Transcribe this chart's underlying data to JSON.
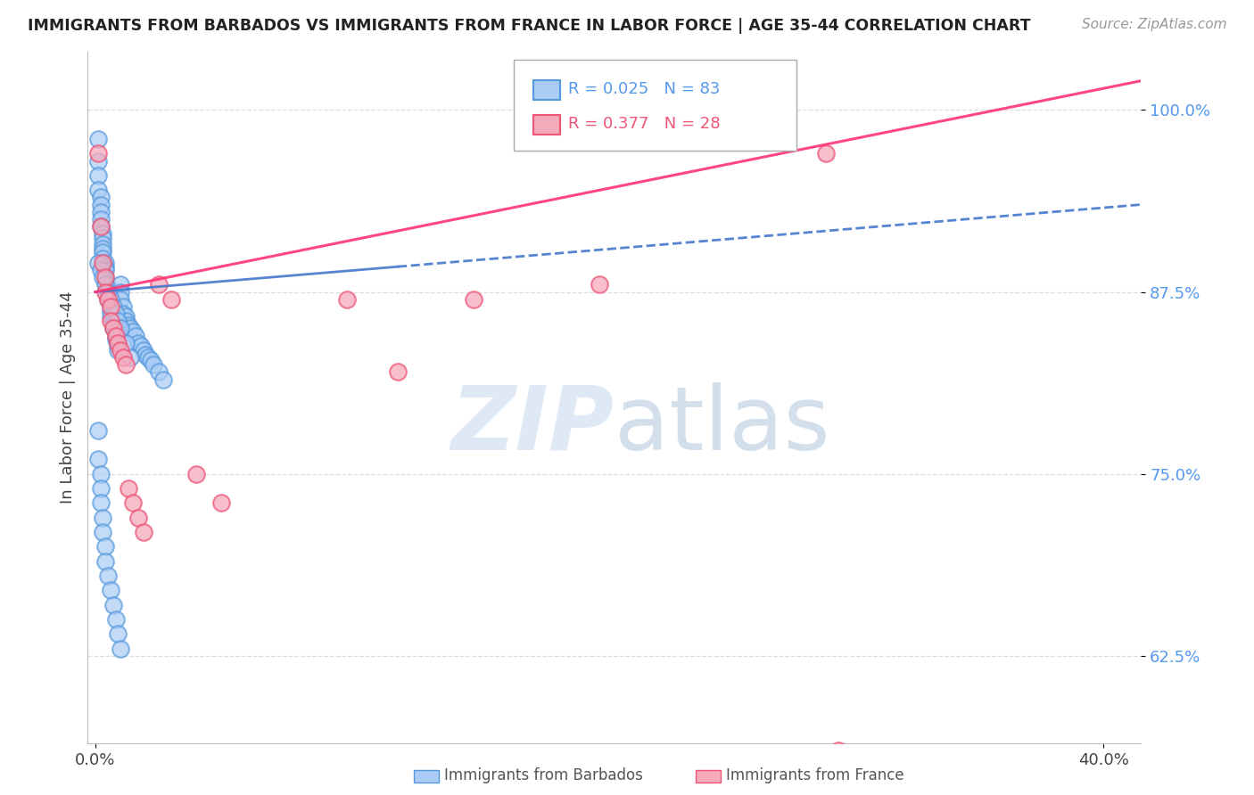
{
  "title": "IMMIGRANTS FROM BARBADOS VS IMMIGRANTS FROM FRANCE IN LABOR FORCE | AGE 35-44 CORRELATION CHART",
  "source": "Source: ZipAtlas.com",
  "ylabel": "In Labor Force | Age 35-44",
  "xlim": [
    -0.003,
    0.415
  ],
  "ylim": [
    0.565,
    1.04
  ],
  "xtick_positions": [
    0.0,
    0.4
  ],
  "xticklabels": [
    "0.0%",
    "40.0%"
  ],
  "ytick_positions": [
    0.625,
    0.75,
    0.875,
    1.0
  ],
  "yticklabels": [
    "62.5%",
    "75.0%",
    "87.5%",
    "100.0%"
  ],
  "barbados_color": "#aaccf5",
  "barbados_edge": "#5599dd",
  "france_color": "#f5aabc",
  "france_edge": "#ee5577",
  "trend_blue": "#4477cc",
  "trend_pink": "#ff3377",
  "barbados_R": 0.025,
  "barbados_N": 83,
  "france_R": 0.377,
  "france_N": 28,
  "watermark_color": "#c8dff0",
  "background_color": "#ffffff",
  "grid_color": "#dddddd",
  "title_color": "#222222",
  "yaxis_tick_color": "#5599ee",
  "legend_label_blue": "R = 0.025   N = 83",
  "legend_label_pink": "R = 0.377   N = 28",
  "bottom_legend_barbados": "Immigrants from Barbados",
  "bottom_legend_france": "Immigrants from France",
  "barbados_x": [
    0.001,
    0.001,
    0.001,
    0.001,
    0.002,
    0.002,
    0.002,
    0.002,
    0.002,
    0.003,
    0.003,
    0.003,
    0.003,
    0.003,
    0.003,
    0.004,
    0.004,
    0.004,
    0.004,
    0.004,
    0.005,
    0.005,
    0.005,
    0.005,
    0.006,
    0.006,
    0.006,
    0.006,
    0.007,
    0.007,
    0.007,
    0.008,
    0.008,
    0.008,
    0.009,
    0.009,
    0.009,
    0.01,
    0.01,
    0.01,
    0.011,
    0.011,
    0.012,
    0.012,
    0.013,
    0.014,
    0.015,
    0.016,
    0.017,
    0.018,
    0.019,
    0.02,
    0.021,
    0.022,
    0.023,
    0.025,
    0.027,
    0.001,
    0.001,
    0.002,
    0.002,
    0.002,
    0.003,
    0.003,
    0.004,
    0.004,
    0.005,
    0.006,
    0.007,
    0.008,
    0.009,
    0.01,
    0.001,
    0.002,
    0.003,
    0.004,
    0.005,
    0.006,
    0.007,
    0.008,
    0.009,
    0.01,
    0.012,
    0.014
  ],
  "barbados_y": [
    0.98,
    0.965,
    0.955,
    0.945,
    0.94,
    0.935,
    0.93,
    0.925,
    0.92,
    0.915,
    0.912,
    0.908,
    0.905,
    0.902,
    0.898,
    0.895,
    0.892,
    0.89,
    0.885,
    0.882,
    0.878,
    0.875,
    0.872,
    0.87,
    0.868,
    0.865,
    0.862,
    0.858,
    0.855,
    0.852,
    0.85,
    0.848,
    0.845,
    0.842,
    0.84,
    0.838,
    0.835,
    0.88,
    0.875,
    0.87,
    0.865,
    0.86,
    0.858,
    0.855,
    0.852,
    0.85,
    0.848,
    0.845,
    0.84,
    0.838,
    0.835,
    0.832,
    0.83,
    0.828,
    0.825,
    0.82,
    0.815,
    0.78,
    0.76,
    0.75,
    0.74,
    0.73,
    0.72,
    0.71,
    0.7,
    0.69,
    0.68,
    0.67,
    0.66,
    0.65,
    0.64,
    0.63,
    0.895,
    0.89,
    0.885,
    0.88,
    0.875,
    0.87,
    0.865,
    0.86,
    0.855,
    0.85,
    0.84,
    0.83
  ],
  "france_x": [
    0.001,
    0.002,
    0.003,
    0.004,
    0.004,
    0.005,
    0.006,
    0.006,
    0.007,
    0.008,
    0.009,
    0.01,
    0.011,
    0.012,
    0.013,
    0.015,
    0.017,
    0.019,
    0.025,
    0.03,
    0.04,
    0.05,
    0.1,
    0.12,
    0.15,
    0.2,
    0.29,
    0.295
  ],
  "france_y": [
    0.97,
    0.92,
    0.895,
    0.885,
    0.875,
    0.87,
    0.865,
    0.855,
    0.85,
    0.845,
    0.84,
    0.835,
    0.83,
    0.825,
    0.74,
    0.73,
    0.72,
    0.71,
    0.88,
    0.87,
    0.75,
    0.73,
    0.87,
    0.82,
    0.87,
    0.88,
    0.97,
    0.56
  ]
}
